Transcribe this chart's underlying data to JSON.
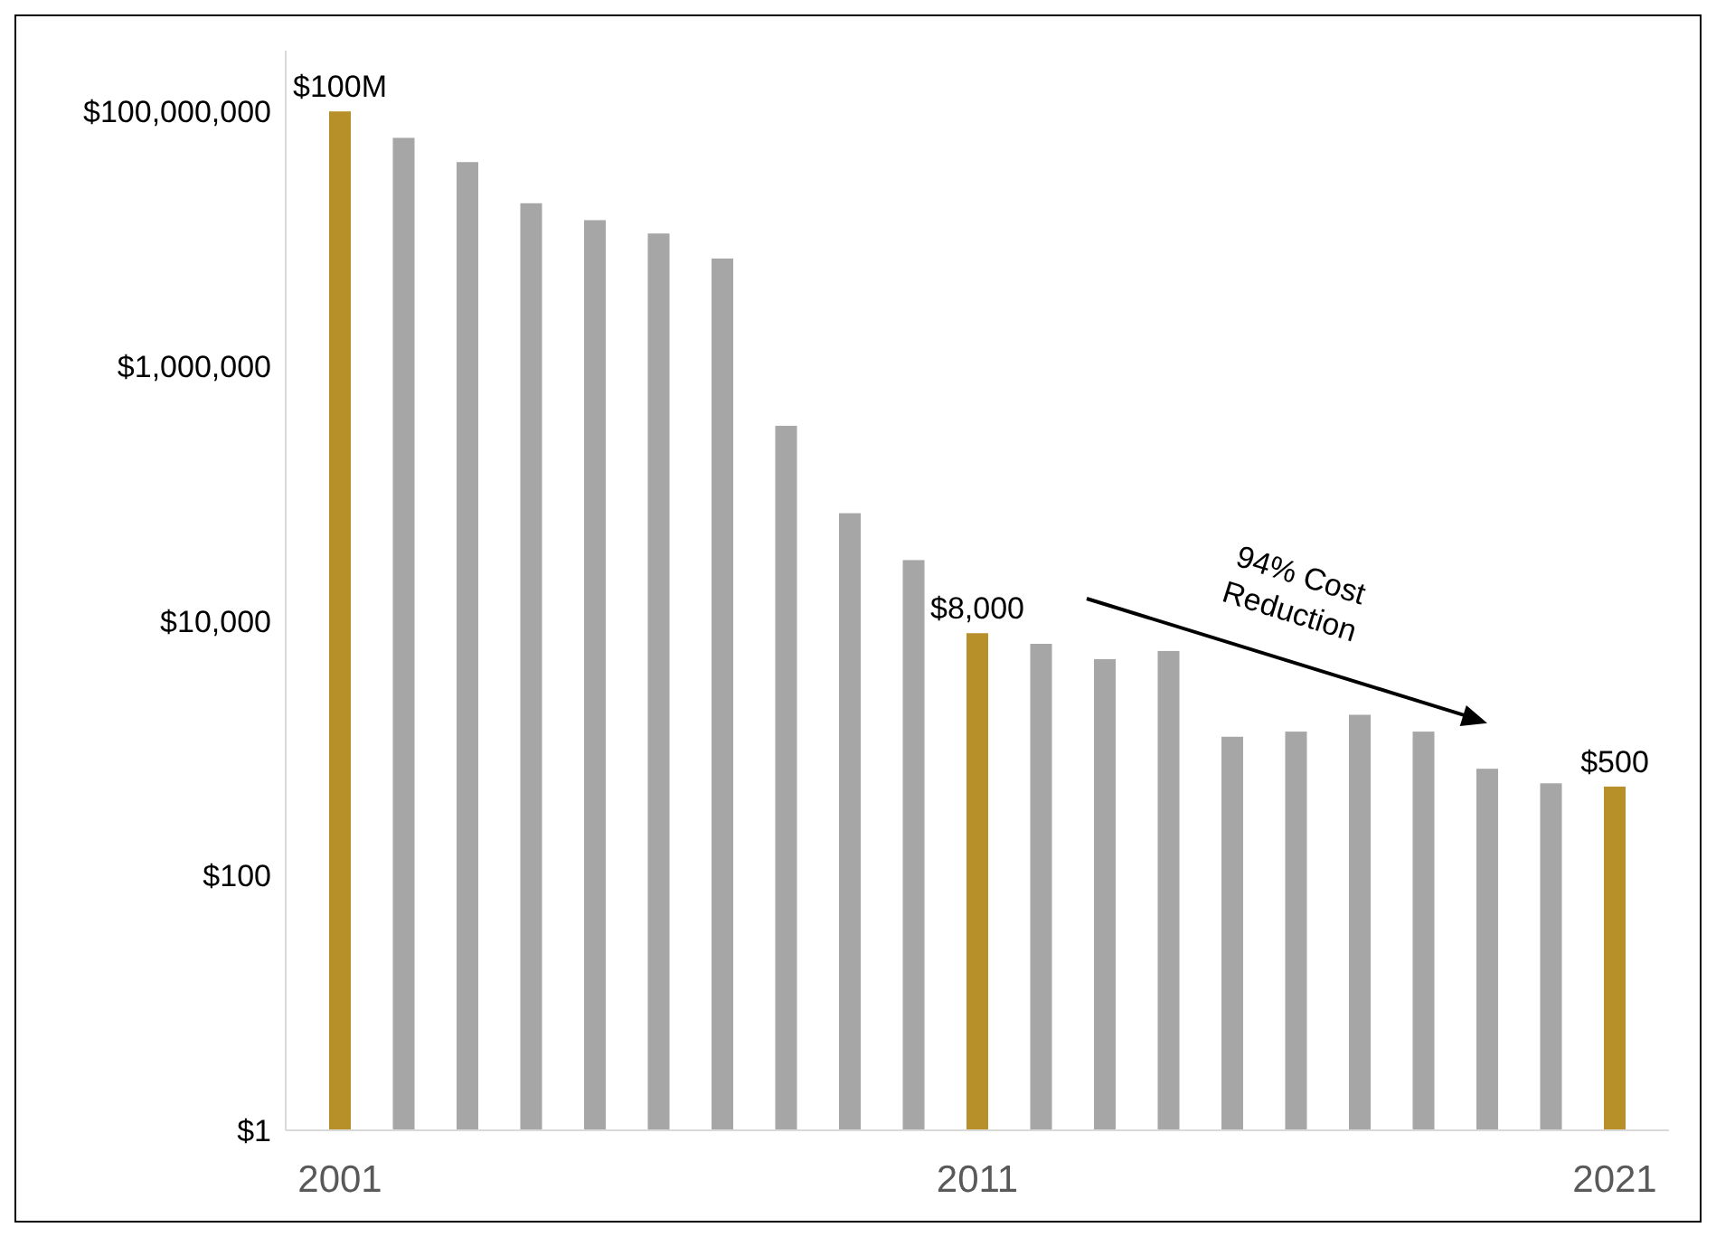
{
  "chart_data": {
    "type": "bar",
    "log": "y",
    "categories": [
      "2001",
      null,
      null,
      null,
      null,
      null,
      null,
      null,
      null,
      null,
      "2011",
      null,
      null,
      null,
      null,
      null,
      null,
      null,
      null,
      null,
      "2021"
    ],
    "values": [
      100000000,
      62000000,
      40000000,
      19000000,
      14000000,
      11000000,
      7000000,
      340000,
      70000,
      30000,
      8000,
      6600,
      5000,
      5800,
      1230,
      1350,
      1830,
      1350,
      690,
      530,
      500
    ],
    "value_labels": [
      "$100M",
      null,
      null,
      null,
      null,
      null,
      null,
      null,
      null,
      null,
      "$8,000",
      null,
      null,
      null,
      null,
      null,
      null,
      null,
      null,
      null,
      "$500"
    ],
    "colors": [
      "#b8902a",
      "#a6a6a6",
      "#a6a6a6",
      "#a6a6a6",
      "#a6a6a6",
      "#a6a6a6",
      "#a6a6a6",
      "#a6a6a6",
      "#a6a6a6",
      "#a6a6a6",
      "#b8902a",
      "#a6a6a6",
      "#a6a6a6",
      "#a6a6a6",
      "#a6a6a6",
      "#a6a6a6",
      "#a6a6a6",
      "#a6a6a6",
      "#a6a6a6",
      "#a6a6a6",
      "#b8902a"
    ],
    "ylim": [
      1,
      300000000
    ],
    "yticks": [
      {
        "value": 1,
        "label": "$1"
      },
      {
        "value": 100,
        "label": "$100"
      },
      {
        "value": 10000,
        "label": "$10,000"
      },
      {
        "value": 1000000,
        "label": "$1,000,000"
      },
      {
        "value": 100000000,
        "label": "$100,000,000"
      }
    ],
    "annotations": [
      "94% Cost Reduction"
    ],
    "grid": false
  }
}
